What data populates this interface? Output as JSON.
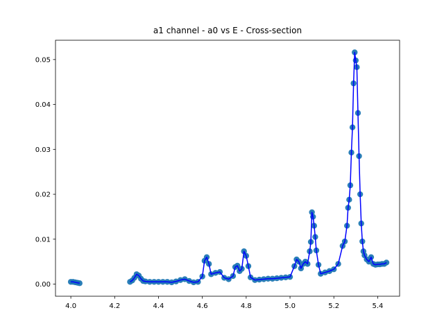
{
  "chart_data": {
    "type": "scatter",
    "title": "a1 channel - a0 vs E - Cross-section",
    "xlabel": "",
    "ylabel": "",
    "xlim": [
      3.93,
      5.5
    ],
    "ylim": [
      -0.0027,
      0.0543
    ],
    "x_ticks": [
      4.0,
      4.2,
      4.4,
      4.6,
      4.8,
      5.0,
      5.2,
      5.4
    ],
    "x_tick_labels": [
      "4.0",
      "4.2",
      "4.4",
      "4.6",
      "4.8",
      "5.0",
      "5.2",
      "5.4"
    ],
    "y_ticks": [
      0.0,
      0.01,
      0.02,
      0.03,
      0.04,
      0.05
    ],
    "y_tick_labels": [
      "0.00",
      "0.01",
      "0.02",
      "0.03",
      "0.04",
      "0.05"
    ],
    "grid": false,
    "colors": {
      "points": "#1f77b4",
      "line": "#0000ff"
    },
    "series": [
      {
        "style": "markers+line",
        "segments": [
          {
            "x": [
              4.0,
              4.01,
              4.02,
              4.03,
              4.04
            ],
            "y": [
              0.0005,
              0.0005,
              0.0004,
              0.0003,
              0.0002
            ]
          },
          {
            "x": [
              4.27,
              4.28,
              4.29,
              4.3,
              4.31,
              4.32,
              4.33,
              4.34,
              4.36,
              4.38,
              4.4,
              4.42,
              4.44,
              4.46,
              4.48,
              4.5,
              4.52,
              4.54,
              4.56,
              4.58,
              4.6,
              4.61,
              4.62,
              4.63,
              4.64,
              4.66,
              4.68,
              4.7,
              4.72,
              4.74,
              4.75,
              4.76,
              4.77,
              4.78,
              4.79,
              4.8,
              4.81,
              4.82,
              4.84,
              4.86,
              4.88,
              4.9,
              4.92,
              4.94,
              4.96,
              4.98,
              5.0,
              5.02,
              5.03,
              5.04,
              5.05,
              5.06,
              5.07,
              5.08,
              5.09,
              5.095,
              5.1,
              5.105,
              5.11,
              5.115,
              5.12,
              5.13,
              5.14,
              5.16,
              5.18,
              5.2,
              5.22,
              5.24,
              5.25,
              5.26,
              5.265,
              5.27,
              5.275,
              5.28,
              5.285,
              5.29,
              5.295,
              5.3,
              5.305,
              5.31,
              5.315,
              5.32,
              5.325,
              5.33,
              5.335,
              5.34,
              5.35,
              5.36,
              5.37,
              5.38,
              5.39,
              5.4,
              5.41,
              5.42,
              5.43,
              5.44
            ],
            "y": [
              0.0005,
              0.0008,
              0.0014,
              0.0022,
              0.0019,
              0.0012,
              0.0007,
              0.0006,
              0.0005,
              0.0005,
              0.0005,
              0.0005,
              0.0005,
              0.0004,
              0.0006,
              0.0009,
              0.0011,
              0.0007,
              0.0004,
              0.0005,
              0.0017,
              0.0052,
              0.006,
              0.0045,
              0.0022,
              0.0025,
              0.0027,
              0.0014,
              0.0011,
              0.0018,
              0.0038,
              0.0041,
              0.0029,
              0.0034,
              0.0073,
              0.0063,
              0.004,
              0.0015,
              0.0009,
              0.001,
              0.0011,
              0.0012,
              0.0012,
              0.0013,
              0.0014,
              0.0015,
              0.0016,
              0.004,
              0.0055,
              0.005,
              0.0035,
              0.0045,
              0.005,
              0.0045,
              0.0073,
              0.0094,
              0.016,
              0.015,
              0.013,
              0.0105,
              0.0075,
              0.0043,
              0.0023,
              0.0026,
              0.0029,
              0.0033,
              0.0045,
              0.0085,
              0.0095,
              0.013,
              0.017,
              0.0188,
              0.022,
              0.0293,
              0.0349,
              0.0447,
              0.0516,
              0.0498,
              0.0483,
              0.0381,
              0.0285,
              0.02,
              0.0135,
              0.0095,
              0.0073,
              0.0064,
              0.0055,
              0.005,
              0.006,
              0.0045,
              0.0043,
              0.0044,
              0.0044,
              0.0045,
              0.0045,
              0.0048
            ]
          }
        ]
      }
    ]
  }
}
